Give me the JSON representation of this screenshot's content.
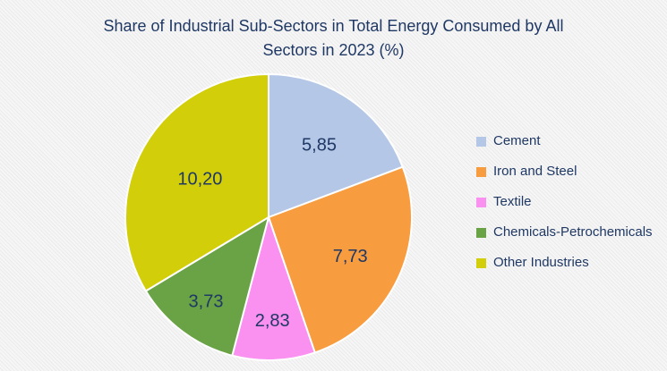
{
  "chart_data": {
    "type": "pie",
    "title": "Share of Industrial Sub-Sectors in Total Energy Consumed by All Sectors in 2023 (%)",
    "title_lines": [
      "Share of Industrial Sub-Sectors in Total Energy Consumed by All",
      "Sectors in 2023 (%)"
    ],
    "categories": [
      "Cement",
      "Iron and Steel",
      "Textile",
      "Chemicals-Petrochemicals",
      "Other Industries"
    ],
    "values": [
      5.85,
      7.73,
      2.83,
      3.73,
      10.2
    ],
    "value_labels": [
      "5,85",
      "7,73",
      "2,83",
      "3,73",
      "10,20"
    ],
    "colors": [
      "#b4c7e7",
      "#f89c40",
      "#fa90f0",
      "#69a346",
      "#d2ce0a"
    ],
    "legend_position": "right",
    "start_angle_deg": 0,
    "direction": "clockwise",
    "title_color": "#1f3864",
    "label_color": "#1f3864",
    "slice_border_color": "#ffffff",
    "background_color": "#f2f2f2"
  }
}
